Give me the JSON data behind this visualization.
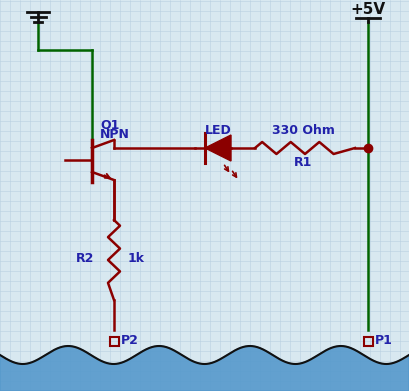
{
  "bg_color": "#d8e8f0",
  "grid_color": "#b8cfe0",
  "wire_dark": "#8b0000",
  "wire_green": "#006400",
  "wire_black": "#111111",
  "text_blue": "#2222aa",
  "water_fill": "#5599cc",
  "water_outline": "#111111",
  "labels": {
    "Q1": "Q1",
    "NPN": "NPN",
    "LED": "LED",
    "R1_top": "330 Ohm",
    "R1_bot": "R1",
    "R2": "R2",
    "val1k": "1k",
    "P1": "P1",
    "P2": "P2",
    "vcc": "+5V"
  }
}
